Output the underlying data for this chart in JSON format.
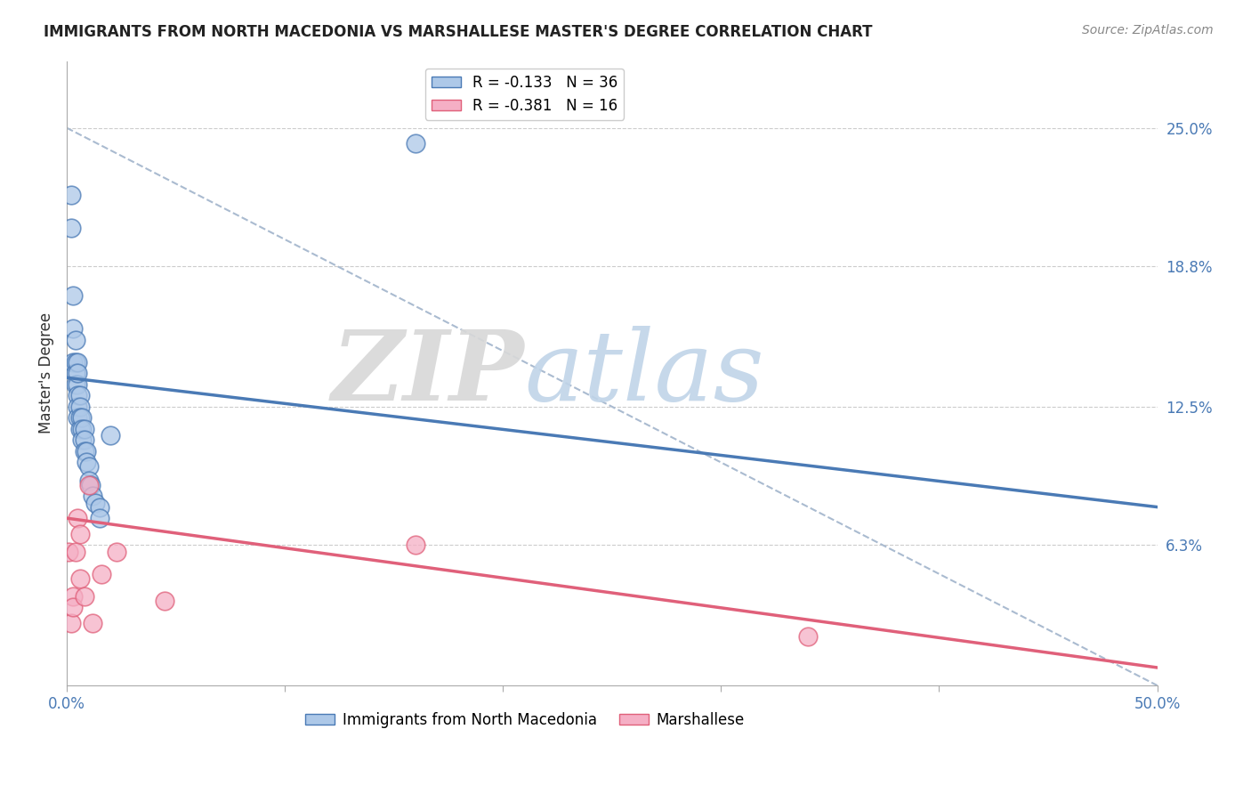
{
  "title": "IMMIGRANTS FROM NORTH MACEDONIA VS MARSHALLESE MASTER'S DEGREE CORRELATION CHART",
  "source": "Source: ZipAtlas.com",
  "xlabel_blue": "Immigrants from North Macedonia",
  "xlabel_pink": "Marshallese",
  "ylabel": "Master's Degree",
  "xlim": [
    0,
    0.5
  ],
  "ylim": [
    0,
    0.28
  ],
  "yticks_right": [
    0.063,
    0.125,
    0.188,
    0.25
  ],
  "ytick_right_labels": [
    "6.3%",
    "12.5%",
    "18.8%",
    "25.0%"
  ],
  "legend_blue": "R = -0.133   N = 36",
  "legend_pink": "R = -0.381   N = 16",
  "blue_color": "#adc8e8",
  "blue_line_color": "#4a7ab5",
  "pink_color": "#f5afc5",
  "pink_line_color": "#e0607a",
  "blue_scatter_x": [
    0.002,
    0.002,
    0.003,
    0.003,
    0.003,
    0.004,
    0.004,
    0.004,
    0.004,
    0.005,
    0.005,
    0.005,
    0.005,
    0.005,
    0.005,
    0.006,
    0.006,
    0.006,
    0.006,
    0.007,
    0.007,
    0.007,
    0.008,
    0.008,
    0.008,
    0.009,
    0.009,
    0.01,
    0.01,
    0.011,
    0.012,
    0.013,
    0.015,
    0.015,
    0.02,
    0.16
  ],
  "blue_scatter_y": [
    0.22,
    0.205,
    0.175,
    0.16,
    0.145,
    0.155,
    0.145,
    0.14,
    0.135,
    0.145,
    0.135,
    0.13,
    0.125,
    0.12,
    0.14,
    0.13,
    0.125,
    0.12,
    0.115,
    0.12,
    0.115,
    0.11,
    0.115,
    0.11,
    0.105,
    0.105,
    0.1,
    0.098,
    0.092,
    0.09,
    0.085,
    0.082,
    0.08,
    0.075,
    0.112,
    0.243
  ],
  "pink_scatter_x": [
    0.001,
    0.002,
    0.003,
    0.003,
    0.004,
    0.005,
    0.006,
    0.006,
    0.008,
    0.01,
    0.012,
    0.016,
    0.023,
    0.16,
    0.34,
    0.045
  ],
  "pink_scatter_y": [
    0.06,
    0.028,
    0.04,
    0.035,
    0.06,
    0.075,
    0.068,
    0.048,
    0.04,
    0.09,
    0.028,
    0.05,
    0.06,
    0.063,
    0.022,
    0.038
  ],
  "blue_line_x": [
    0.0,
    0.5
  ],
  "blue_line_y": [
    0.138,
    0.08
  ],
  "pink_line_x": [
    0.0,
    0.5
  ],
  "pink_line_y": [
    0.075,
    0.008
  ],
  "diag_line_x": [
    0.0,
    0.5
  ],
  "diag_line_y": [
    0.25,
    0.0
  ],
  "diag_line_color": "#aabbd0"
}
